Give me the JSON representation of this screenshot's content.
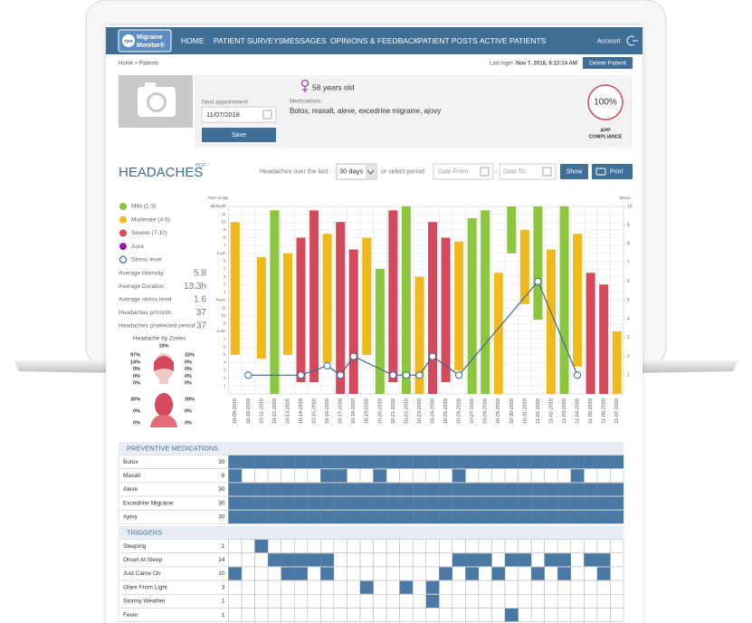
{
  "nav": {
    "logo_icon": "rpm",
    "logo_lines": [
      "Migraine",
      "Monitor®"
    ],
    "items": [
      "HOME",
      "PATIENT SURVEYS",
      "MESSAGES",
      "OPINIONS & FEEDBACK",
      "PATIENT POSTS",
      "ACTIVE PATIENTS"
    ],
    "account": "Account"
  },
  "breadcrumb": "Home > Patients",
  "last_login_label": "Last login",
  "last_login": "Nov 7, 2018, 8:12:14 AM",
  "delete_button": "Delete Patient",
  "patient": {
    "next_appointment_label": "Next appointment",
    "next_appointment": "11/07/2018",
    "save": "Save",
    "age": "58 years old",
    "medications_label": "Medications",
    "medications": "Botox, maxalt, aleve, excedrine migraine, ajovy",
    "compliance": "100%",
    "compliance_label": [
      "APP",
      "COMPLIANCE"
    ]
  },
  "headaches": {
    "title": "HEADACHES",
    "pdf": "PDF",
    "period_label": "Headaches over the last",
    "period": "30 days",
    "or": "or select period",
    "date_from": "Date From",
    "dash": "-",
    "date_to": "Date To",
    "show": "Show",
    "print": "Print"
  },
  "stats": [
    {
      "label": "Average intensity",
      "value": "5.8"
    },
    {
      "label": "Average Duration",
      "value": "13.3h"
    },
    {
      "label": "Average stress level",
      "value": "1.6"
    },
    {
      "label": "Headaches p/month",
      "value": "37"
    },
    {
      "label": "Headaches p/selected period",
      "value": "37"
    }
  ],
  "zones": {
    "title": "Headache by Zones",
    "top": "19%",
    "upper_left": [
      "97%",
      "14%",
      "0%",
      "0%",
      "0%"
    ],
    "upper_right": [
      "33%",
      "0%",
      "0%",
      "0%",
      "0%"
    ],
    "lower_left": [
      "30%",
      "0%",
      "0%"
    ],
    "lower_right": [
      "39%",
      "0%",
      "0%"
    ]
  },
  "chart_data": {
    "type": "floating-bar",
    "y_title": "Time of day",
    "y2_title": "Stress",
    "categories": [
      "10-09-2018",
      "10-10-2018",
      "10-11-2018",
      "10-12-2018",
      "10-13-2018",
      "10-14-2018",
      "10-15-2018",
      "10-16-2018",
      "10-17-2018",
      "10-18-2018",
      "10-19-2018",
      "10-20-2018",
      "10-21-2018",
      "10-22-2018",
      "10-23-2018",
      "10-24-2018",
      "10-25-2018",
      "10-26-2018",
      "10-27-2018",
      "10-28-2018",
      "10-29-2018",
      "10-30-2018",
      "10-31-2018",
      "11-01-2018",
      "11-02-2018",
      "11-03-2018",
      "11-04-2018",
      "11-05-2018",
      "11-06-2018",
      "11-07-2018"
    ],
    "levels": [
      {
        "name": "Mild (1-3)",
        "color": "#8cc63f"
      },
      {
        "name": "Moderate (4-6)",
        "color": "#f0b91c"
      },
      {
        "name": "Severe (7-10)",
        "color": "#d4495b"
      },
      {
        "name": "Aura",
        "color": "#8e1e9e"
      }
    ],
    "bars": [
      {
        "from": 5,
        "to": 22,
        "level": 1
      },
      null,
      {
        "from": 4.5,
        "to": 17.5,
        "level": 1
      },
      {
        "from": 0,
        "to": 23.5,
        "level": 0
      },
      {
        "from": 5,
        "to": 18,
        "level": 1
      },
      {
        "from": 1.5,
        "to": 20,
        "level": 2
      },
      {
        "from": 1.5,
        "to": 23.5,
        "level": 2
      },
      {
        "from": 4,
        "to": 20.5,
        "level": 1
      },
      {
        "from": 0,
        "to": 22,
        "level": 2
      },
      {
        "from": 0,
        "to": 18.5,
        "level": 2
      },
      {
        "from": 5,
        "to": 20,
        "level": 1
      },
      {
        "from": 0,
        "to": 16,
        "level": 0
      },
      {
        "from": 1.5,
        "to": 23.5,
        "level": 2
      },
      {
        "from": 0,
        "to": 24,
        "level": 0
      },
      {
        "from": 0,
        "to": 15,
        "level": 1
      },
      {
        "from": 0,
        "to": 22,
        "level": 2
      },
      {
        "from": 1.5,
        "to": 20,
        "level": 2
      },
      {
        "from": 3,
        "to": 19.5,
        "level": 1
      },
      {
        "from": 0,
        "to": 22.5,
        "level": 0
      },
      {
        "from": 0,
        "to": 23.5,
        "level": 0
      },
      {
        "from": 0,
        "to": 15.5,
        "level": 1
      },
      {
        "from": 18,
        "to": 24,
        "level": 0
      },
      {
        "from": 11.5,
        "to": 21,
        "level": 1
      },
      {
        "from": 9.5,
        "to": 24,
        "level": 0
      },
      {
        "from": 0,
        "to": 18.5,
        "level": 1
      },
      {
        "from": 0,
        "to": 24,
        "level": 0
      },
      {
        "from": 3.5,
        "to": 20.5,
        "level": 1
      },
      {
        "from": 0,
        "to": 15.5,
        "level": 2
      },
      {
        "from": 0,
        "to": 14,
        "level": 2
      },
      {
        "from": 0,
        "to": 8,
        "level": 1
      }
    ],
    "stress": {
      "name": "Stress level",
      "color": "#3d6b94",
      "dates": [
        "10-10-2018",
        "10-14-2018",
        "10-16-2018",
        "10-17-2018",
        "10-18-2018",
        "10-21-2018",
        "10-22-2018",
        "10-23-2018",
        "10-24-2018",
        "10-26-2018",
        "11-01-2018",
        "11-04-2018"
      ],
      "values": [
        1,
        1,
        1.5,
        1,
        2,
        1,
        1,
        1,
        2,
        1,
        6,
        1
      ]
    },
    "ylim": [
      0,
      24
    ],
    "yticks": [
      1,
      2,
      3,
      4,
      5,
      6,
      7,
      {
        "value": 8,
        "label": "8 am"
      },
      9,
      10,
      11,
      {
        "value": 12,
        "label": "Noon"
      },
      {
        "value": 13,
        "label": "1"
      },
      {
        "value": 14,
        "label": "2"
      },
      {
        "value": 15,
        "label": "3"
      },
      {
        "value": 16,
        "label": "4"
      },
      {
        "value": 17,
        "label": "5"
      },
      {
        "value": 18,
        "label": "6 pm"
      },
      {
        "value": 19,
        "label": "7"
      },
      {
        "value": 20,
        "label": "8"
      },
      {
        "value": 21,
        "label": "9"
      },
      {
        "value": 22,
        "label": "10"
      },
      {
        "value": 23,
        "label": "11"
      },
      {
        "value": 24,
        "label": "Midnight"
      }
    ],
    "y2lim": [
      0,
      10
    ],
    "y2ticks": [
      1,
      2,
      3,
      4,
      5,
      6,
      7,
      8,
      9,
      10
    ],
    "grid": true
  },
  "medications": {
    "title": "PREVENTIVE MEDICATIONS",
    "color": "#4a79a5",
    "rows": [
      {
        "name": "Botox",
        "count": 30,
        "days": [
          0,
          1,
          2,
          3,
          4,
          5,
          6,
          7,
          8,
          9,
          10,
          11,
          12,
          13,
          14,
          15,
          16,
          17,
          18,
          19,
          20,
          21,
          22,
          23,
          24,
          25,
          26,
          27,
          28,
          29
        ]
      },
      {
        "name": "Maxalt",
        "count": 6,
        "days": [
          0,
          7,
          8,
          11,
          17,
          26
        ]
      },
      {
        "name": "Aleve",
        "count": 30,
        "days": [
          0,
          1,
          2,
          3,
          4,
          5,
          6,
          7,
          8,
          9,
          10,
          11,
          12,
          13,
          14,
          15,
          16,
          17,
          18,
          19,
          20,
          21,
          22,
          23,
          24,
          25,
          26,
          27,
          28,
          29
        ]
      },
      {
        "name": "Excedrine Migraine",
        "count": 30,
        "days": [
          0,
          1,
          2,
          3,
          4,
          5,
          6,
          7,
          8,
          9,
          10,
          11,
          12,
          13,
          14,
          15,
          16,
          17,
          18,
          19,
          20,
          21,
          22,
          23,
          24,
          25,
          26,
          27,
          28,
          29
        ]
      },
      {
        "name": "Ajovy",
        "count": 30,
        "days": [
          0,
          1,
          2,
          3,
          4,
          5,
          6,
          7,
          8,
          9,
          10,
          11,
          12,
          13,
          14,
          15,
          16,
          17,
          18,
          19,
          20,
          21,
          22,
          23,
          24,
          25,
          26,
          27,
          28,
          29
        ]
      }
    ]
  },
  "triggers": {
    "title": "TRIGGERS",
    "color": "#4a79a5",
    "rows": [
      {
        "name": "Sleeping",
        "count": 1,
        "days": [
          2
        ]
      },
      {
        "name": "Onset At Sleep",
        "count": 14,
        "days": [
          3,
          4,
          5,
          6,
          7,
          17,
          18,
          19,
          21,
          22,
          24,
          25,
          27,
          28
        ]
      },
      {
        "name": "Just Came On",
        "count": 10,
        "days": [
          0,
          4,
          5,
          7,
          16,
          18,
          20,
          23,
          25,
          28
        ]
      },
      {
        "name": "Glare From Light",
        "count": 3,
        "days": [
          10,
          13,
          15
        ]
      },
      {
        "name": "Stormy Weather",
        "count": 1,
        "days": [
          15
        ]
      },
      {
        "name": "Fever",
        "count": 1,
        "days": [
          21
        ]
      }
    ]
  }
}
